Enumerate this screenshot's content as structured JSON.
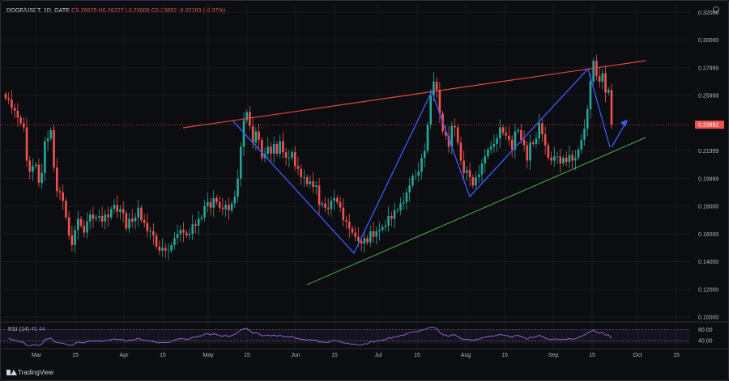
{
  "header": {
    "pair": "DOGE/USDT, 1D, GATE",
    "ohlc": "O0.26075 H0.26227 L0.23006 C0.23892",
    "change": "-0.02183 (-8.37%)"
  },
  "rsi": {
    "label": "RSI (14)",
    "value": "45.44",
    "levels": [
      "80.00",
      "40.00"
    ]
  },
  "branding": {
    "name": "TradingView"
  },
  "chart_data": {
    "type": "candlestick",
    "y_ticks": [
      "0.32000",
      "0.30000",
      "0.27999",
      "0.25999",
      "0.21999",
      "0.19999",
      "0.18000",
      "0.16000",
      "0.14000",
      "0.12000",
      "0.10000"
    ],
    "current_price": "0.23892",
    "x_ticks": [
      "Mar",
      "15",
      "Apr",
      "15",
      "May",
      "15",
      "Jun",
      "15",
      "Jul",
      "15",
      "Aug",
      "15",
      "Sep",
      "15",
      "Oct",
      "15"
    ],
    "ylim": [
      0.1,
      0.326
    ],
    "colors": {
      "up": "#26a69a",
      "down": "#ef5350",
      "resistance": "#e8434a",
      "support": "#4caf50",
      "zigzag": "#3d5afe",
      "rsi": "#9c6ade"
    },
    "closes": [
      0.258,
      0.257,
      0.251,
      0.249,
      0.244,
      0.24,
      0.237,
      0.213,
      0.205,
      0.209,
      0.21,
      0.197,
      0.204,
      0.227,
      0.229,
      0.235,
      0.208,
      0.191,
      0.19,
      0.184,
      0.172,
      0.159,
      0.152,
      0.163,
      0.171,
      0.166,
      0.161,
      0.169,
      0.174,
      0.171,
      0.172,
      0.173,
      0.169,
      0.174,
      0.172,
      0.178,
      0.181,
      0.176,
      0.178,
      0.175,
      0.164,
      0.171,
      0.169,
      0.172,
      0.179,
      0.17,
      0.168,
      0.162,
      0.162,
      0.159,
      0.151,
      0.148,
      0.15,
      0.148,
      0.148,
      0.152,
      0.157,
      0.16,
      0.163,
      0.161,
      0.159,
      0.16,
      0.167,
      0.166,
      0.171,
      0.172,
      0.18,
      0.183,
      0.179,
      0.186,
      0.183,
      0.179,
      0.178,
      0.181,
      0.177,
      0.182,
      0.187,
      0.2,
      0.223,
      0.242,
      0.248,
      0.238,
      0.226,
      0.234,
      0.228,
      0.215,
      0.218,
      0.223,
      0.218,
      0.225,
      0.218,
      0.227,
      0.219,
      0.215,
      0.215,
      0.219,
      0.209,
      0.207,
      0.201,
      0.201,
      0.196,
      0.198,
      0.194,
      0.195,
      0.181,
      0.182,
      0.179,
      0.178,
      0.184,
      0.186,
      0.183,
      0.179,
      0.17,
      0.169,
      0.164,
      0.161,
      0.158,
      0.155,
      0.153,
      0.157,
      0.154,
      0.162,
      0.158,
      0.162,
      0.163,
      0.165,
      0.166,
      0.173,
      0.171,
      0.177,
      0.177,
      0.182,
      0.183,
      0.19,
      0.195,
      0.202,
      0.202,
      0.205,
      0.215,
      0.22,
      0.239,
      0.26,
      0.27,
      0.264,
      0.247,
      0.234,
      0.231,
      0.223,
      0.238,
      0.237,
      0.226,
      0.213,
      0.204,
      0.206,
      0.201,
      0.195,
      0.201,
      0.203,
      0.211,
      0.216,
      0.221,
      0.223,
      0.225,
      0.229,
      0.237,
      0.233,
      0.231,
      0.228,
      0.221,
      0.234,
      0.235,
      0.228,
      0.224,
      0.213,
      0.226,
      0.225,
      0.229,
      0.24,
      0.232,
      0.224,
      0.215,
      0.213,
      0.216,
      0.216,
      0.211,
      0.215,
      0.212,
      0.217,
      0.213,
      0.215,
      0.221,
      0.228,
      0.236,
      0.25,
      0.27,
      0.285,
      0.274,
      0.27,
      0.276,
      0.262,
      0.264,
      0.239
    ]
  }
}
